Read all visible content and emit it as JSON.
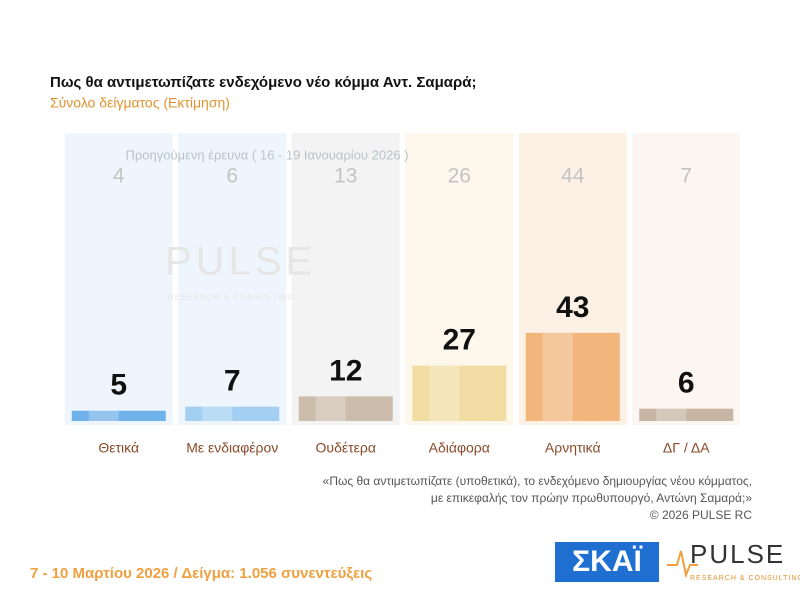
{
  "chart_data": {
    "type": "bar",
    "title": "Πως θα αντιμετωπίζατε ενδεχόμενο νέο κόμμα Αντ. Σαμαρά;",
    "subtitle": "Σύνολο δείγματος  (Εκτίμηση)",
    "previous_label": "Προηγούμενη έρευνα ( 16 - 19 Ιανουαρίου 2026 )",
    "categories": [
      "Θετικά",
      "Με ενδιαφέρον",
      "Ουδέτερα",
      "Αδιάφορα",
      "Αρνητικά",
      "ΔΓ / ΔΑ"
    ],
    "values": [
      5,
      7,
      12,
      27,
      43,
      6
    ],
    "previous_values": [
      4,
      6,
      13,
      26,
      44,
      7
    ],
    "colors": [
      "#6fb2ea",
      "#a3d0f2",
      "#cbbcab",
      "#f1dda3",
      "#f2b57c",
      "#c6b6a3"
    ],
    "background_colors": [
      "#eef5fc",
      "#eef5fc",
      "#f3f3f3",
      "#fdf7ec",
      "#fdf0e4",
      "#fbf6f1"
    ],
    "question_lines": [
      "«Πως θα αντιμετωπίζατε (υποθετικά), το ενδεχόμενο δημιουργίας νέου κόμματος,",
      "με επικεφαλής τον πρώην πρωθυπουργό, Αντώνη Σαμαρά;»"
    ],
    "copyright": "©  2026  PULSE RC",
    "footer": "7 - 10  Μαρτίου 2026  /  Δείγμα:  1.056 συνεντεύξεις",
    "logos": {
      "skai": "ΣΚΑΪ",
      "pulse": "PULSE",
      "pulse_sub": "RESEARCH & CONSULTING"
    }
  }
}
